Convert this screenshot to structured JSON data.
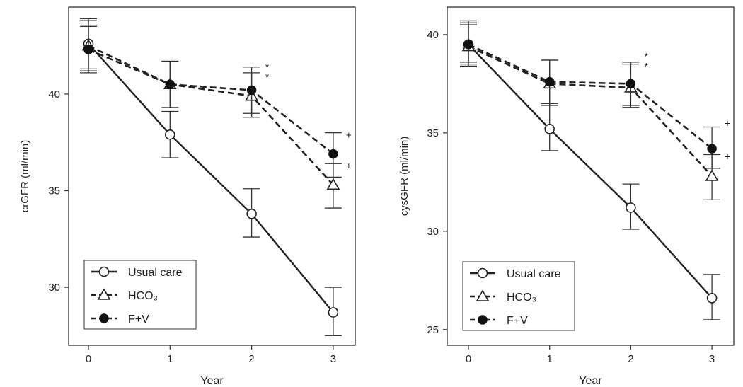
{
  "chart_data": [
    {
      "type": "line",
      "title": "",
      "xlabel": "Year",
      "ylabel": "crGFR (ml/min)",
      "x": [
        0,
        1,
        2,
        3
      ],
      "xticks": [
        "0",
        "1",
        "2",
        "3"
      ],
      "yticks": [
        "30",
        "35",
        "40"
      ],
      "ylim": [
        27,
        44.5
      ],
      "grid": false,
      "legend_position": "bottom-left",
      "series": [
        {
          "name": "Usual care",
          "values": [
            42.6,
            37.9,
            33.8,
            28.7
          ],
          "err_low": [
            41.3,
            36.7,
            32.6,
            27.5
          ],
          "err_high": [
            43.8,
            39.1,
            35.1,
            30.0
          ],
          "line": "solid",
          "marker": "open-circle"
        },
        {
          "name": "HCO₃",
          "values": [
            42.5,
            40.5,
            39.9,
            35.3
          ],
          "err_low": [
            41.2,
            39.3,
            38.8,
            34.1
          ],
          "err_high": [
            43.5,
            41.7,
            41.1,
            36.4
          ],
          "line": "dashed",
          "marker": "open-triangle"
        },
        {
          "name": "F+V",
          "values": [
            42.3,
            40.5,
            40.2,
            36.9
          ],
          "err_low": [
            41.1,
            39.3,
            39.0,
            35.7
          ],
          "err_high": [
            43.9,
            41.7,
            41.4,
            38.0
          ],
          "line": "dashed",
          "marker": "filled-circle"
        }
      ],
      "annotations": [
        {
          "text": "*",
          "x": 2,
          "y": 41.4
        },
        {
          "text": "*",
          "x": 2,
          "y": 40.9
        },
        {
          "text": "+",
          "x": 3,
          "y": 37.9
        },
        {
          "text": "+",
          "x": 3,
          "y": 36.3
        }
      ]
    },
    {
      "type": "line",
      "title": "",
      "xlabel": "Year",
      "ylabel": "cysGFR (ml/min)",
      "x": [
        0,
        1,
        2,
        3
      ],
      "xticks": [
        "0",
        "1",
        "2",
        "3"
      ],
      "yticks": [
        "25",
        "30",
        "35",
        "40"
      ],
      "ylim": [
        24.2,
        41.4
      ],
      "grid": false,
      "legend_position": "bottom-left",
      "series": [
        {
          "name": "Usual care",
          "values": [
            39.5,
            35.2,
            31.2,
            26.6
          ],
          "err_low": [
            38.4,
            34.1,
            30.1,
            25.5
          ],
          "err_high": [
            40.6,
            36.5,
            32.4,
            27.8
          ],
          "line": "solid",
          "marker": "open-circle"
        },
        {
          "name": "HCO₃",
          "values": [
            39.4,
            37.5,
            37.3,
            32.8
          ],
          "err_low": [
            38.5,
            36.4,
            36.3,
            31.6
          ],
          "err_high": [
            40.5,
            38.7,
            38.5,
            33.9
          ],
          "line": "dashed",
          "marker": "open-triangle"
        },
        {
          "name": "F+V",
          "values": [
            39.5,
            37.6,
            37.5,
            34.2
          ],
          "err_low": [
            38.6,
            36.5,
            36.4,
            33.2
          ],
          "err_high": [
            40.7,
            38.7,
            38.6,
            35.3
          ],
          "line": "dashed",
          "marker": "filled-circle"
        }
      ],
      "annotations": [
        {
          "text": "*",
          "x": 2,
          "y": 38.9
        },
        {
          "text": "*",
          "x": 2,
          "y": 38.4
        },
        {
          "text": "+",
          "x": 3,
          "y": 35.5
        },
        {
          "text": "+",
          "x": 3,
          "y": 33.8
        }
      ]
    }
  ]
}
